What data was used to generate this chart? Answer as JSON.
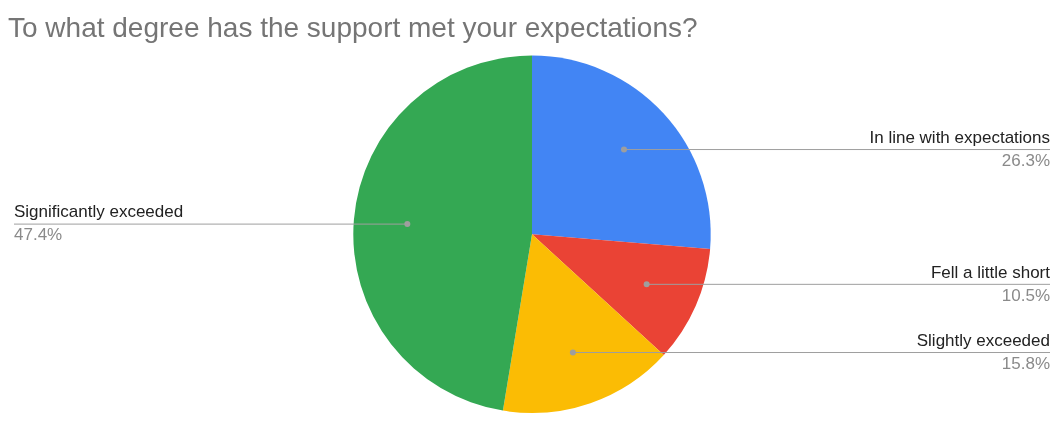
{
  "chart_data": {
    "type": "pie",
    "title": "To what degree has the support met your expectations?",
    "categories": [
      "In line with expectations",
      "Fell a little short",
      "Slightly exceeded",
      "Significantly exceeded"
    ],
    "values": [
      26.3,
      10.5,
      15.8,
      47.4
    ],
    "colors": [
      "#4285f4",
      "#ea4335",
      "#fbbc04",
      "#34a853"
    ],
    "value_labels": [
      "26.3%",
      "10.5%",
      "15.8%",
      "47.4%"
    ],
    "legend": false
  }
}
